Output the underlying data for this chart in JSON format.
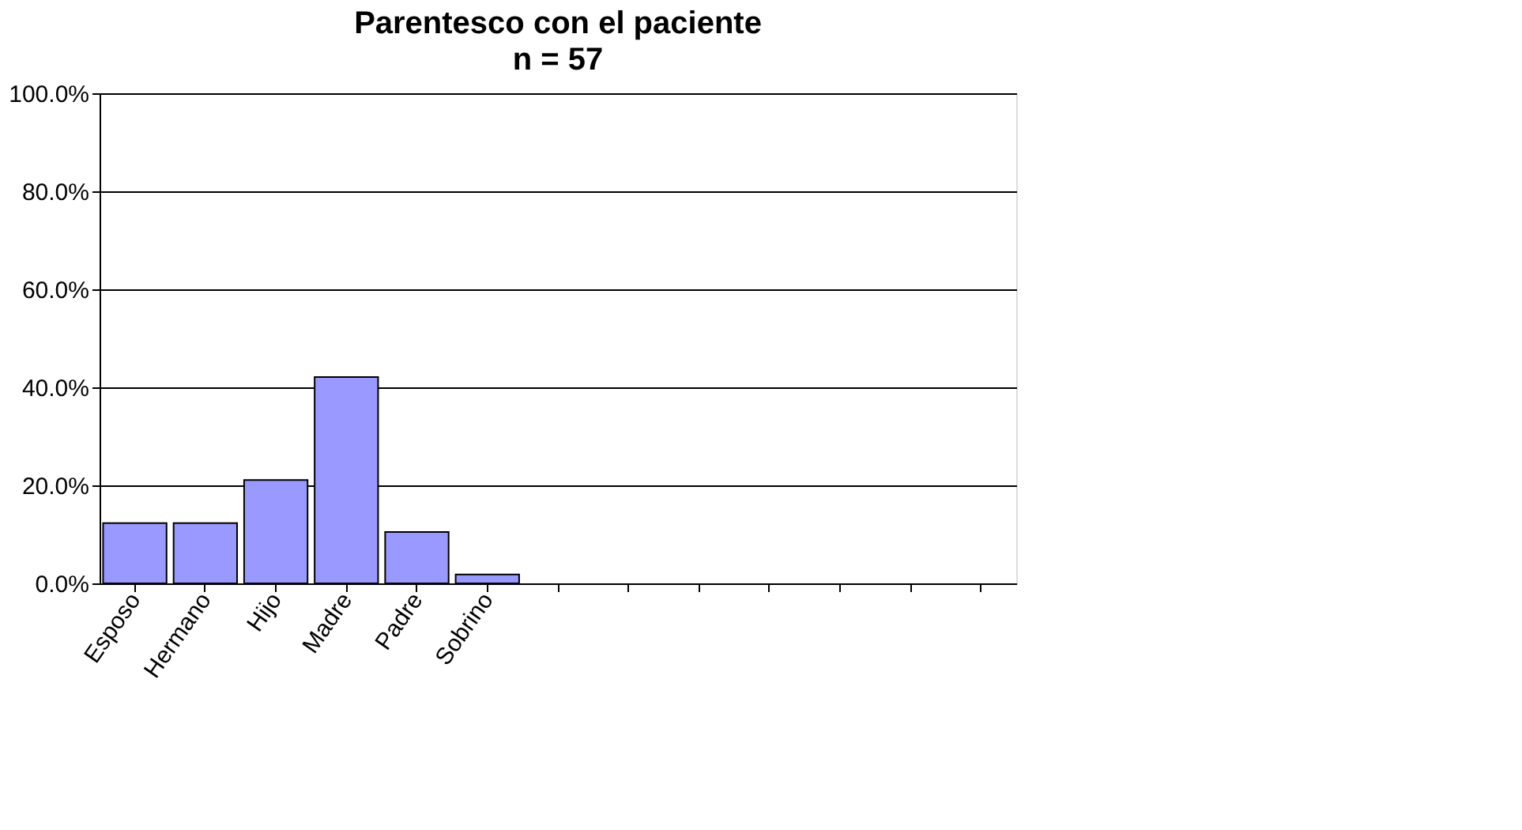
{
  "chart_data": {
    "type": "bar",
    "title": "Parentesco con el paciente",
    "subtitle": "n = 57",
    "categories": [
      "Esposo",
      "Hermano",
      "Hijo",
      "Madre",
      "Padre",
      "Sobrino",
      null,
      null,
      null,
      null,
      null,
      null,
      null
    ],
    "values": [
      12.3,
      12.3,
      21.1,
      42.1,
      10.5,
      1.8,
      null,
      null,
      null,
      null,
      null,
      null,
      null
    ],
    "color": "#9999ff",
    "ylim": [
      0,
      100
    ],
    "yticks": [
      {
        "value": 0,
        "label": "0.0%"
      },
      {
        "value": 20,
        "label": "20.0%"
      },
      {
        "value": 40,
        "label": "40.0%"
      },
      {
        "value": 60,
        "label": "60.0%"
      },
      {
        "value": 80,
        "label": "80.0%"
      },
      {
        "value": 100,
        "label": "100.0%"
      }
    ],
    "grid": "y"
  }
}
